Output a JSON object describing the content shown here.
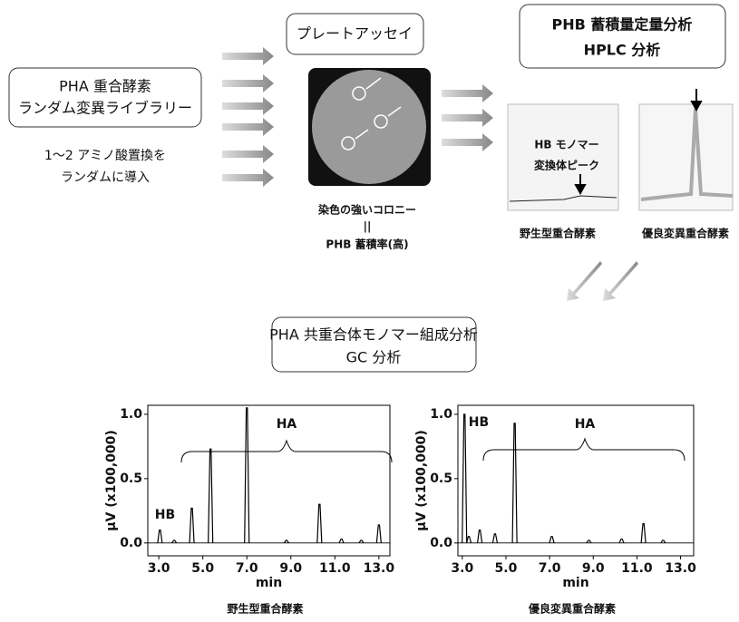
{
  "library": {
    "title": [
      "PHA 重合酵素",
      "ランダム変異ライブラリー"
    ],
    "note": [
      "1～2 アミノ酸置換を",
      "ランダムに導入"
    ]
  },
  "plate": {
    "title": "プレートアッセイ",
    "caption": [
      "染色の強いコロニー",
      "||",
      "PHB 蓄積率(高)"
    ]
  },
  "hplc": {
    "title": [
      "PHB 蓄積量定量分析",
      "HPLC 分析"
    ],
    "peak_label": [
      "HB モノマー",
      "変換体ピーク"
    ],
    "captions": [
      "野生型重合酵素",
      "優良変異重合酵素"
    ]
  },
  "gc": {
    "title": [
      "PHA 共重合体モノマー組成分析",
      "GC 分析"
    ]
  },
  "chart_data": [
    {
      "type": "line",
      "title": "野生型重合酵素",
      "x_label": "min",
      "y_label": "µV (x100,000)",
      "annotations": [
        "HB",
        "HA"
      ],
      "color": "#000000",
      "x": [
        3.05,
        3.7,
        4.5,
        5.35,
        7.0,
        8.8,
        10.3,
        11.3,
        12.2,
        13.0
      ],
      "values": [
        0.1,
        0.02,
        0.27,
        0.73,
        1.05,
        0.02,
        0.3,
        0.03,
        0.02,
        0.14
      ],
      "xlim": [
        2.5,
        13.5
      ],
      "ylim": [
        -0.1,
        1.07
      ],
      "xticks": [
        {
          "value": 3,
          "label": "3.0"
        },
        {
          "value": 5,
          "label": "5.0"
        },
        {
          "value": 7,
          "label": "7.0"
        },
        {
          "value": 9,
          "label": "9.0"
        },
        {
          "value": 11,
          "label": "11.0"
        },
        {
          "value": 13,
          "label": "13.0"
        }
      ],
      "yticks": [
        {
          "value": 0,
          "label": "0.0"
        },
        {
          "value": 0.5,
          "label": "0.5"
        },
        {
          "value": 1,
          "label": "1.0"
        }
      ]
    },
    {
      "type": "line",
      "title": "優良変異重合酵素",
      "x_label": "min",
      "y_label": "µV (x100,000)",
      "annotations": [
        "HB",
        "HA"
      ],
      "color": "#000000",
      "x": [
        3.1,
        3.3,
        3.8,
        4.5,
        5.4,
        7.1,
        8.8,
        10.3,
        11.3,
        12.2
      ],
      "values": [
        1.0,
        0.05,
        0.1,
        0.07,
        0.93,
        0.05,
        0.02,
        0.03,
        0.15,
        0.02
      ],
      "xlim": [
        2.8,
        13.6
      ],
      "ylim": [
        -0.1,
        1.07
      ],
      "xticks": [
        {
          "value": 3,
          "label": "3.0"
        },
        {
          "value": 5,
          "label": "5.0"
        },
        {
          "value": 7,
          "label": "7.0"
        },
        {
          "value": 9,
          "label": "9.0"
        },
        {
          "value": 11,
          "label": "11.0"
        },
        {
          "value": 13,
          "label": "13.0"
        }
      ],
      "yticks": [
        {
          "value": 0,
          "label": "0.0"
        },
        {
          "value": 0.5,
          "label": "0.5"
        },
        {
          "value": 1,
          "label": "1.0"
        }
      ]
    }
  ]
}
